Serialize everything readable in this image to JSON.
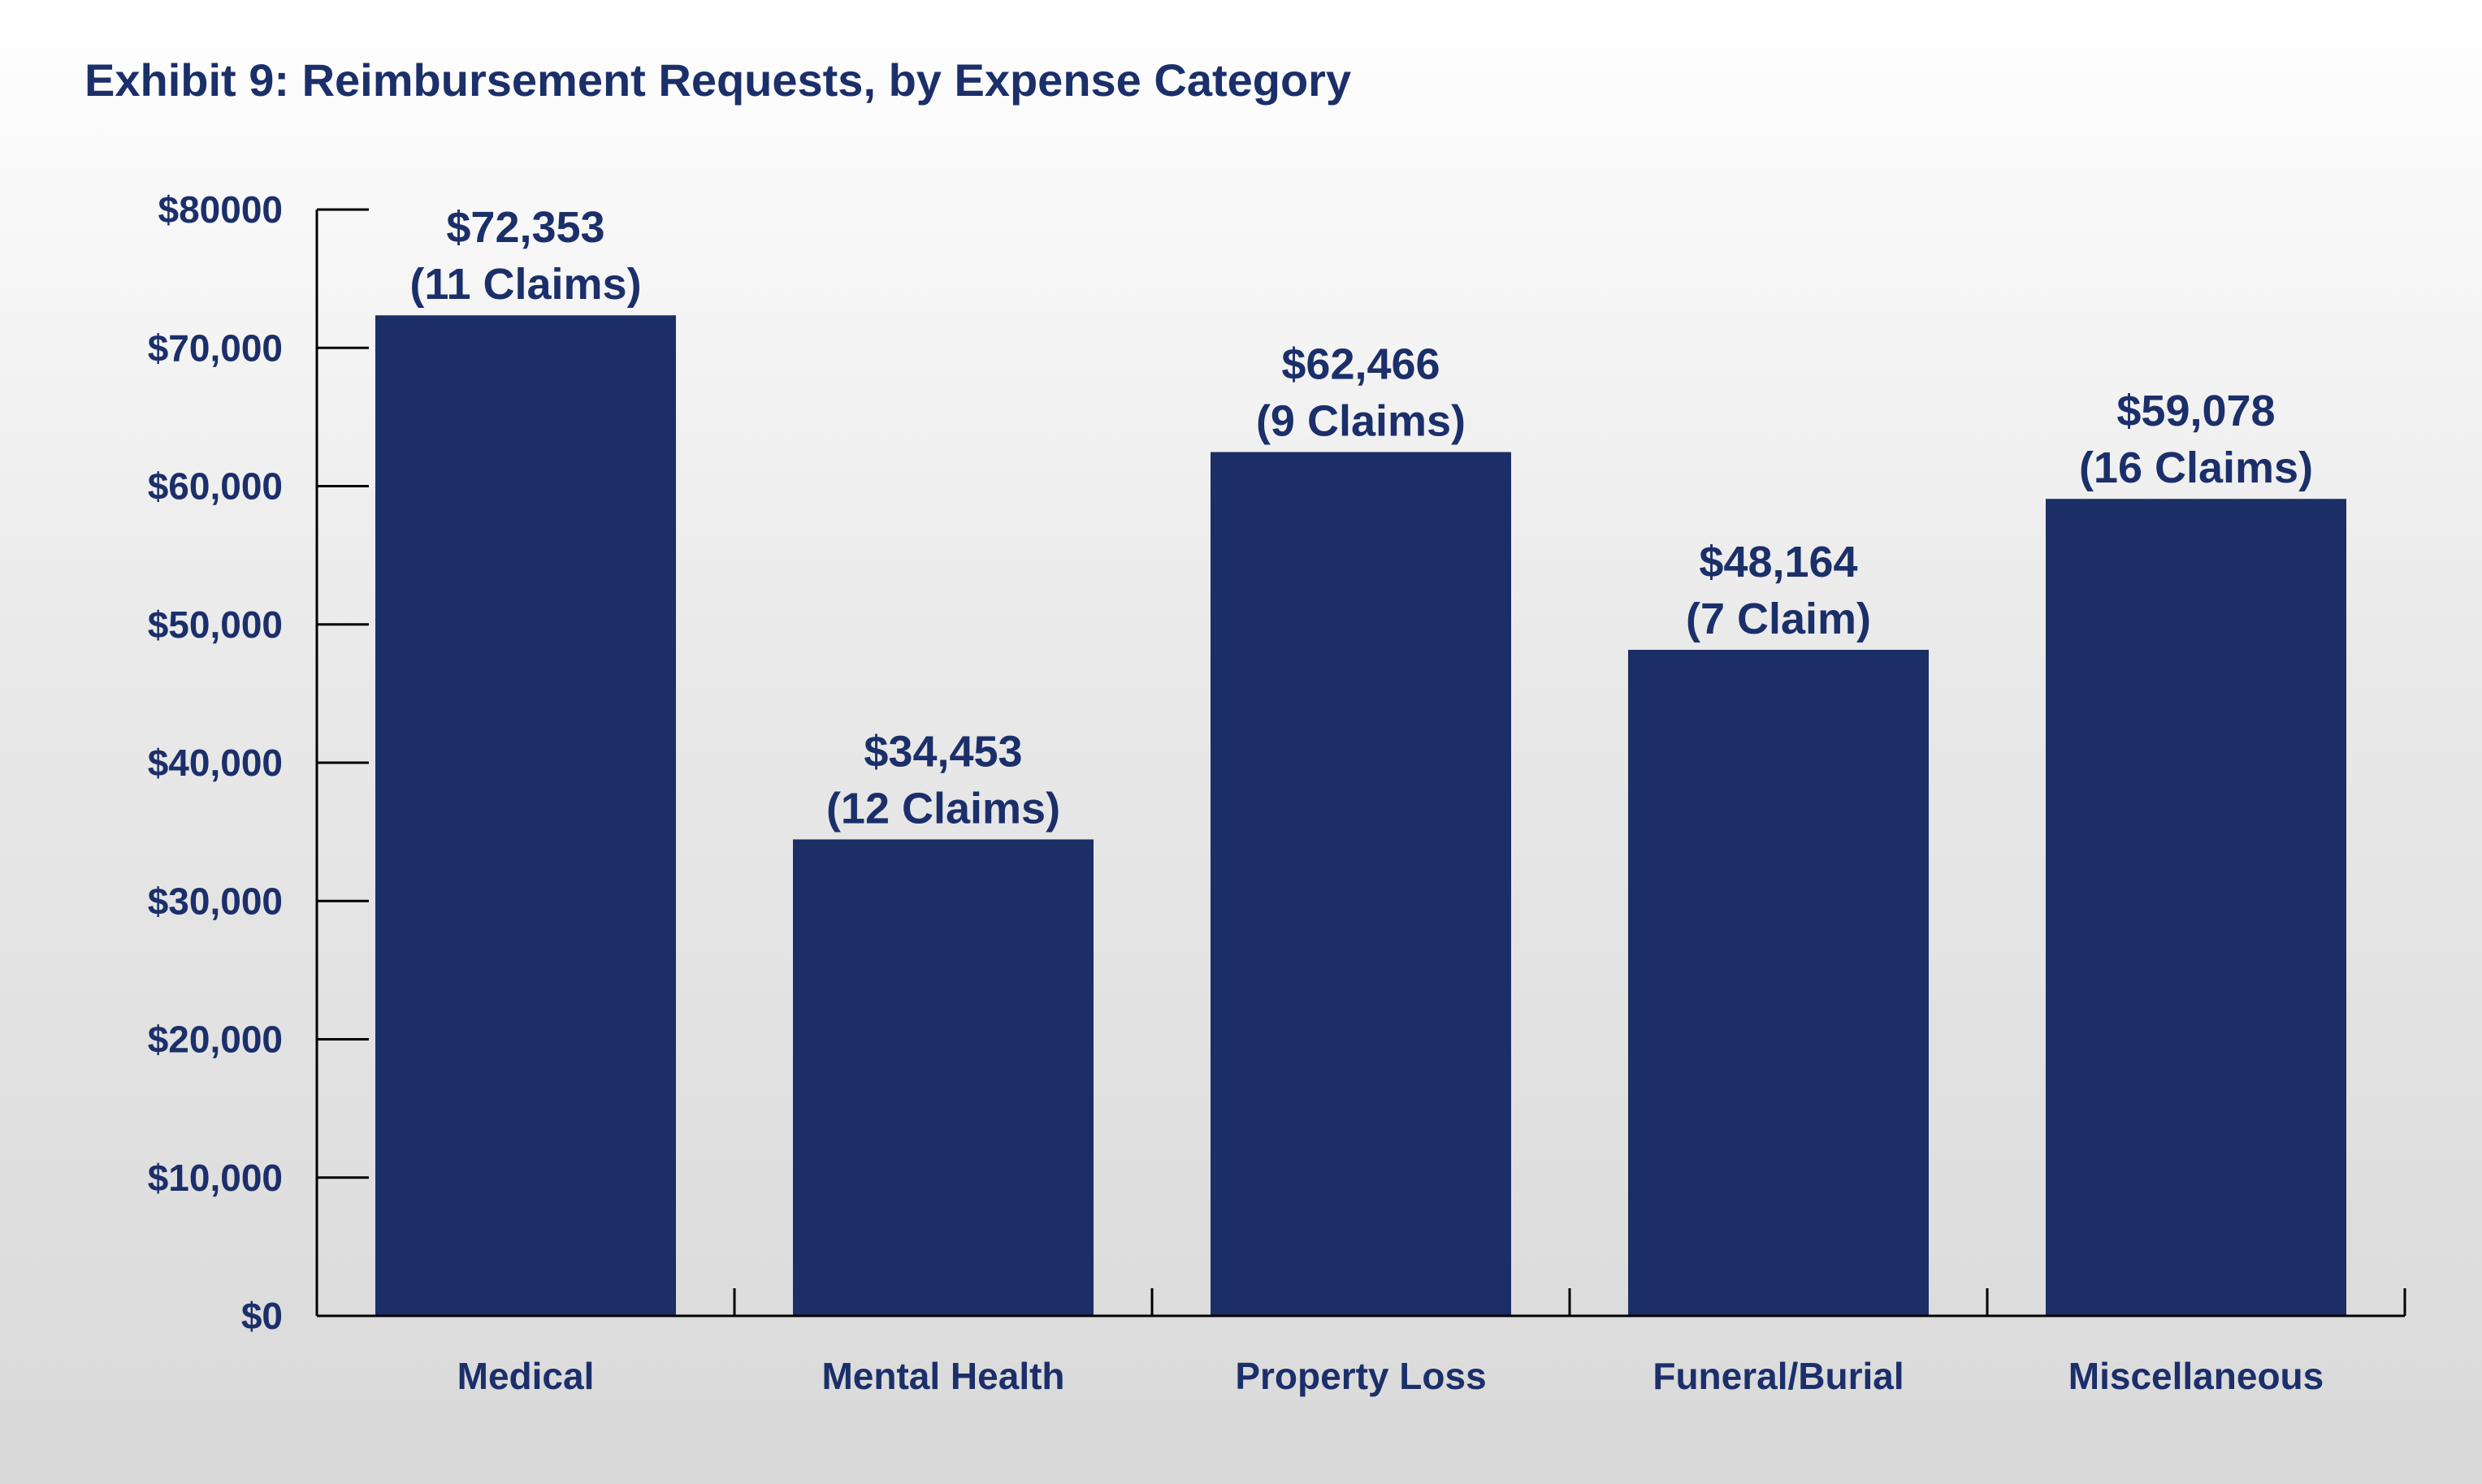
{
  "chart_data": {
    "type": "bar",
    "title": "Exhibit 9: Reimbursement Requests, by Expense Category",
    "xlabel": "",
    "ylabel": "",
    "categories": [
      "Medical",
      "Mental Health",
      "Property Loss",
      "Funeral/Burial",
      "Miscellaneous"
    ],
    "values": [
      72353,
      34453,
      62466,
      48164,
      59078
    ],
    "data_labels": [
      {
        "amount": "$72,353",
        "claims": "(11 Claims)"
      },
      {
        "amount": "$34,453",
        "claims": "(12 Claims)"
      },
      {
        "amount": "$62,466",
        "claims": "(9 Claims)"
      },
      {
        "amount": "$48,164",
        "claims": "(7 Claim)"
      },
      {
        "amount": "$59,078",
        "claims": "(16 Claims)"
      }
    ],
    "ylim": [
      0,
      80000
    ],
    "y_ticks": [
      {
        "value": 0,
        "label": "$0"
      },
      {
        "value": 10000,
        "label": "$10,000"
      },
      {
        "value": 20000,
        "label": "$20,000"
      },
      {
        "value": 30000,
        "label": "$30,000"
      },
      {
        "value": 40000,
        "label": "$40,000"
      },
      {
        "value": 50000,
        "label": "$50,000"
      },
      {
        "value": 60000,
        "label": "$60,000"
      },
      {
        "value": 70000,
        "label": "$70,000"
      },
      {
        "value": 80000,
        "label": "$80000"
      }
    ],
    "grid": false,
    "legend": "none",
    "colors": {
      "bar": "#1b2e66",
      "text": "#1b2f6a",
      "axis": "#000000"
    }
  }
}
